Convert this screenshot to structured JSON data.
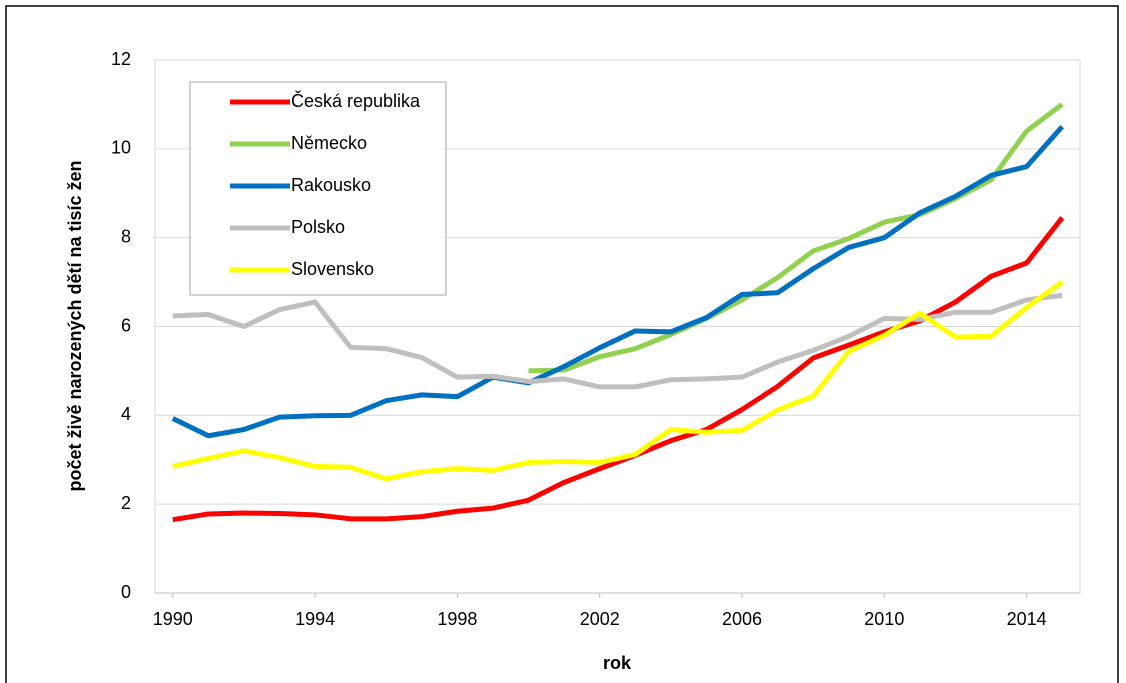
{
  "chart_data": {
    "type": "line",
    "xlabel": "rok",
    "ylabel": "počet živě narozených dětí na tisíc žen",
    "x": [
      1990,
      1991,
      1992,
      1993,
      1994,
      1995,
      1996,
      1997,
      1998,
      1999,
      2000,
      2001,
      2002,
      2003,
      2004,
      2005,
      2006,
      2007,
      2008,
      2009,
      2010,
      2011,
      2012,
      2013,
      2014,
      2015
    ],
    "xlim": [
      1989.5,
      2015.5
    ],
    "xticks": [
      1990,
      1994,
      1998,
      2002,
      2006,
      2010,
      2014
    ],
    "ylim": [
      0,
      12
    ],
    "yticks": [
      0,
      2,
      4,
      6,
      8,
      10,
      12
    ],
    "grid": true,
    "legend": "upper left",
    "series": [
      {
        "name": "Česká republika",
        "color": "#ff0000",
        "values": [
          1.65,
          1.78,
          1.8,
          1.79,
          1.76,
          1.67,
          1.67,
          1.72,
          1.84,
          1.91,
          2.09,
          2.49,
          2.8,
          3.1,
          3.43,
          3.68,
          4.13,
          4.65,
          5.29,
          5.58,
          5.88,
          6.13,
          6.55,
          7.13,
          7.43,
          8.45
        ]
      },
      {
        "name": "Německo",
        "color": "#92d050",
        "values": [
          null,
          null,
          null,
          null,
          null,
          null,
          null,
          null,
          null,
          null,
          5.0,
          5.02,
          5.32,
          5.5,
          5.82,
          6.18,
          6.6,
          7.1,
          7.7,
          7.98,
          8.35,
          8.52,
          8.88,
          9.3,
          10.4,
          11.0
        ]
      },
      {
        "name": "Rakousko",
        "color": "#0070c0",
        "values": [
          3.93,
          3.54,
          3.68,
          3.96,
          3.99,
          4.0,
          4.33,
          4.46,
          4.42,
          4.86,
          4.73,
          5.1,
          5.52,
          5.9,
          5.88,
          6.2,
          6.72,
          6.76,
          7.3,
          7.78,
          8.0,
          8.56,
          8.93,
          9.4,
          9.6,
          10.5
        ]
      },
      {
        "name": "Polsko",
        "color": "#bfbfbf",
        "values": [
          6.24,
          6.27,
          6.0,
          6.38,
          6.55,
          5.53,
          5.5,
          5.3,
          4.86,
          4.88,
          4.76,
          4.82,
          4.64,
          4.64,
          4.8,
          4.82,
          4.86,
          5.2,
          5.46,
          5.78,
          6.18,
          6.16,
          6.32,
          6.32,
          6.6,
          6.7
        ]
      },
      {
        "name": "Slovensko",
        "color": "#ffff00",
        "values": [
          2.85,
          3.03,
          3.2,
          3.05,
          2.85,
          2.83,
          2.57,
          2.73,
          2.8,
          2.76,
          2.94,
          2.96,
          2.94,
          3.12,
          3.68,
          3.62,
          3.66,
          4.12,
          4.43,
          5.44,
          5.8,
          6.3,
          5.76,
          5.78,
          6.43,
          7.0
        ]
      }
    ]
  }
}
